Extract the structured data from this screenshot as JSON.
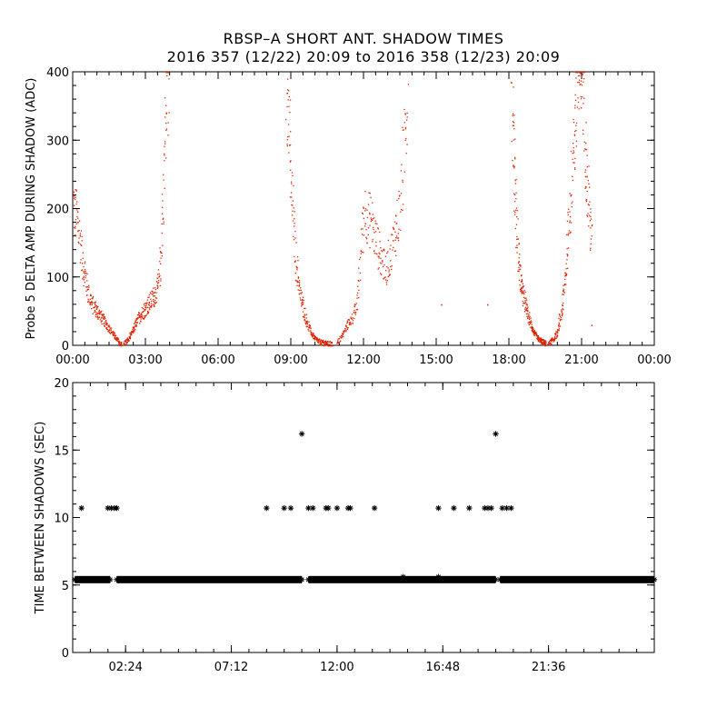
{
  "title_line1": "RBSP–A SHORT ANT. SHADOW TIMES",
  "title_line2": "2016 357 (12/22) 20:09 to 2016 358 (12/23) 20:09",
  "colors": {
    "top_points": "#dd2200",
    "bottom_points": "#000000",
    "axes": "#000000"
  },
  "chart_data": [
    {
      "type": "scatter",
      "title": "",
      "ylabel": "Probe 5 DELTA AMP DURING SHADOW (ADC)",
      "xlabel": "",
      "x_unit": "hours",
      "xlim": [
        0,
        24
      ],
      "ylim": [
        0,
        400
      ],
      "x_ticks": [
        0,
        3,
        6,
        9,
        12,
        15,
        18,
        21,
        24
      ],
      "x_tick_labels": [
        "00:00",
        "03:00",
        "06:00",
        "09:00",
        "12:00",
        "15:00",
        "18:00",
        "21:00",
        "00:00"
      ],
      "y_ticks": [
        0,
        100,
        200,
        300,
        400
      ],
      "y_tick_labels": [
        "0",
        "100",
        "200",
        "300",
        "400"
      ],
      "marker": "dot",
      "color": "#dd2200",
      "shadow_curves": [
        {
          "x": [
            0.0,
            0.2,
            0.4,
            0.6,
            0.8,
            1.0,
            1.2,
            1.5,
            1.7,
            1.9,
            2.0
          ],
          "y": [
            205,
            180,
            120,
            80,
            60,
            50,
            40,
            25,
            15,
            5,
            2
          ]
        },
        {
          "x": [
            2.1,
            2.3,
            2.5,
            2.7,
            3.0,
            3.3,
            3.5,
            3.6,
            3.75,
            3.85,
            3.95
          ],
          "y": [
            3,
            10,
            25,
            40,
            55,
            70,
            85,
            120,
            250,
            380,
            400
          ]
        },
        {
          "x": [
            8.8,
            8.9,
            9.0,
            9.2,
            9.4,
            9.6,
            9.8,
            10.0,
            10.2,
            10.5,
            10.7
          ],
          "y": [
            400,
            330,
            230,
            120,
            70,
            40,
            20,
            10,
            5,
            3,
            2
          ]
        },
        {
          "x": [
            10.9,
            11.1,
            11.3,
            11.5,
            11.7,
            11.8,
            12.0,
            12.3,
            12.6,
            12.9,
            13.2,
            13.5,
            13.8
          ],
          "y": [
            3,
            15,
            30,
            40,
            55,
            100,
            200,
            180,
            140,
            110,
            150,
            200,
            380
          ]
        },
        {
          "x": [
            18.1,
            18.2,
            18.3,
            18.4,
            18.6,
            18.8,
            19.0,
            19.2,
            19.4,
            19.5
          ],
          "y": [
            380,
            260,
            180,
            110,
            70,
            40,
            20,
            10,
            5,
            3
          ]
        },
        {
          "x": [
            19.6,
            19.8,
            20.0,
            20.2,
            20.4,
            20.6,
            20.8,
            21.0,
            21.2,
            21.4
          ],
          "y": [
            3,
            8,
            20,
            60,
            140,
            260,
            380,
            400,
            250,
            150
          ]
        }
      ],
      "isolated_points": [
        {
          "x": 15.2,
          "y": 60
        },
        {
          "x": 17.1,
          "y": 60
        },
        {
          "x": 21.4,
          "y": 30
        }
      ]
    },
    {
      "type": "scatter",
      "title": "",
      "ylabel": "TIME BETWEEN SHADOWS (SEC)",
      "xlabel": "",
      "x_unit": "hours",
      "xlim": [
        0,
        26.4
      ],
      "ylim": [
        0,
        20
      ],
      "x_ticks": [
        2.4,
        7.2,
        12.0,
        16.8,
        21.6
      ],
      "x_tick_labels": [
        "02:24",
        "07:12",
        "12:00",
        "16:48",
        "21:36"
      ],
      "y_ticks": [
        0,
        5,
        10,
        15,
        20
      ],
      "y_tick_labels": [
        "0",
        "5",
        "10",
        "15",
        "20"
      ],
      "marker": "asterisk",
      "color": "#000000",
      "baseline_value": 5.4,
      "baseline_segments": [
        [
          0.1,
          1.7
        ],
        [
          2.0,
          10.4
        ],
        [
          10.7,
          19.2
        ],
        [
          19.4,
          26.4
        ]
      ],
      "points": [
        {
          "x": 0.4,
          "y": 10.7
        },
        {
          "x": 1.6,
          "y": 10.7
        },
        {
          "x": 1.75,
          "y": 10.7
        },
        {
          "x": 1.9,
          "y": 10.7
        },
        {
          "x": 2.0,
          "y": 10.7
        },
        {
          "x": 8.8,
          "y": 10.7
        },
        {
          "x": 9.6,
          "y": 10.7
        },
        {
          "x": 9.9,
          "y": 10.7
        },
        {
          "x": 10.4,
          "y": 16.2
        },
        {
          "x": 10.7,
          "y": 10.7
        },
        {
          "x": 10.9,
          "y": 10.7
        },
        {
          "x": 11.5,
          "y": 10.7
        },
        {
          "x": 11.6,
          "y": 10.7
        },
        {
          "x": 12.0,
          "y": 10.7
        },
        {
          "x": 12.5,
          "y": 10.7
        },
        {
          "x": 12.6,
          "y": 10.7
        },
        {
          "x": 13.7,
          "y": 10.7
        },
        {
          "x": 16.6,
          "y": 10.7
        },
        {
          "x": 17.3,
          "y": 10.7
        },
        {
          "x": 18.0,
          "y": 10.7
        },
        {
          "x": 18.7,
          "y": 10.7
        },
        {
          "x": 18.85,
          "y": 10.7
        },
        {
          "x": 19.0,
          "y": 10.7
        },
        {
          "x": 19.2,
          "y": 16.2
        },
        {
          "x": 19.5,
          "y": 10.7
        },
        {
          "x": 19.7,
          "y": 10.7
        },
        {
          "x": 19.9,
          "y": 10.7
        },
        {
          "x": 15.0,
          "y": 5.6
        },
        {
          "x": 16.6,
          "y": 5.6
        }
      ]
    }
  ]
}
